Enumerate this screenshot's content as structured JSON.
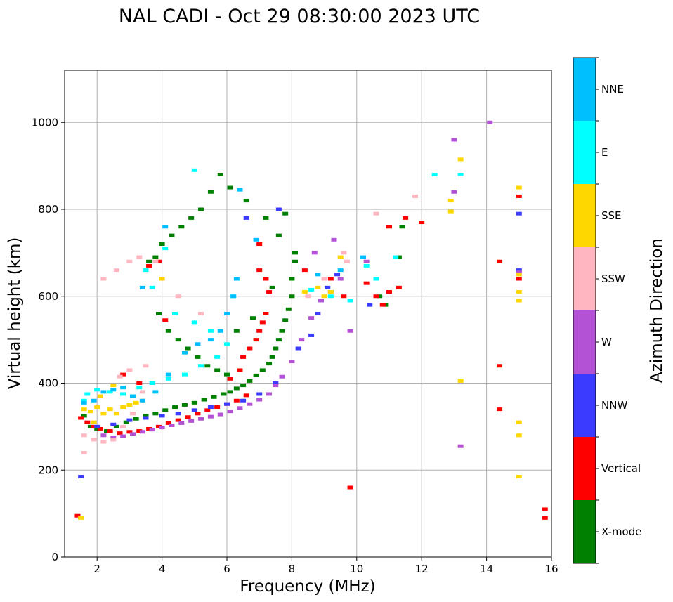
{
  "chart_data": {
    "type": "scatter",
    "title": "NAL CADI - Oct 29 08:30:00 2023 UTC",
    "xlabel": "Frequency (MHz)",
    "ylabel": "Virtual height (km)",
    "xlim": [
      1,
      16
    ],
    "ylim": [
      0,
      1120
    ],
    "xticks": [
      2,
      4,
      6,
      8,
      10,
      12,
      14,
      16
    ],
    "xtick_labels": [
      "2",
      "4",
      "6",
      "8",
      "10",
      "12",
      "14",
      "16"
    ],
    "yticks": [
      0,
      200,
      400,
      600,
      800,
      1000
    ],
    "ytick_labels": [
      "0",
      "200",
      "400",
      "600",
      "800",
      "1000"
    ],
    "grid": true,
    "colorbar": {
      "label": "Azimuth Direction",
      "categories": [
        {
          "name": "X-mode",
          "color": "#008000"
        },
        {
          "name": "Vertical",
          "color": "#ff0000"
        },
        {
          "name": "NNW",
          "color": "#3b3bff"
        },
        {
          "name": "W",
          "color": "#b452d6"
        },
        {
          "name": "SSW",
          "color": "#ffb6c1"
        },
        {
          "name": "SSE",
          "color": "#ffd700"
        },
        {
          "name": "E",
          "color": "#00ffff"
        },
        {
          "name": "NNE",
          "color": "#00bfff"
        }
      ]
    },
    "series": [
      {
        "name": "X-mode",
        "points": [
          [
            1.6,
            325
          ],
          [
            1.8,
            300
          ],
          [
            2.0,
            295
          ],
          [
            2.3,
            290
          ],
          [
            2.6,
            300
          ],
          [
            2.9,
            310
          ],
          [
            3.2,
            318
          ],
          [
            3.5,
            325
          ],
          [
            3.8,
            330
          ],
          [
            4.1,
            338
          ],
          [
            4.4,
            345
          ],
          [
            4.7,
            350
          ],
          [
            5.0,
            355
          ],
          [
            5.3,
            362
          ],
          [
            5.6,
            368
          ],
          [
            5.9,
            375
          ],
          [
            6.1,
            380
          ],
          [
            6.3,
            388
          ],
          [
            6.5,
            395
          ],
          [
            6.7,
            405
          ],
          [
            6.9,
            418
          ],
          [
            7.1,
            430
          ],
          [
            7.3,
            445
          ],
          [
            7.4,
            460
          ],
          [
            7.5,
            480
          ],
          [
            7.6,
            500
          ],
          [
            7.7,
            520
          ],
          [
            7.8,
            545
          ],
          [
            7.9,
            570
          ],
          [
            8.0,
            600
          ],
          [
            8.0,
            640
          ],
          [
            8.1,
            680
          ],
          [
            8.1,
            700
          ],
          [
            7.6,
            740
          ],
          [
            7.2,
            780
          ],
          [
            6.6,
            820
          ],
          [
            6.1,
            850
          ],
          [
            5.8,
            880
          ],
          [
            5.5,
            840
          ],
          [
            5.2,
            800
          ],
          [
            4.9,
            780
          ],
          [
            4.6,
            760
          ],
          [
            4.3,
            740
          ],
          [
            4.0,
            720
          ],
          [
            3.8,
            690
          ],
          [
            3.6,
            680
          ],
          [
            3.9,
            560
          ],
          [
            4.2,
            520
          ],
          [
            4.5,
            500
          ],
          [
            4.8,
            480
          ],
          [
            5.1,
            460
          ],
          [
            5.4,
            440
          ],
          [
            5.7,
            430
          ],
          [
            6.0,
            420
          ],
          [
            6.3,
            520
          ],
          [
            6.8,
            550
          ],
          [
            7.4,
            620
          ],
          [
            7.8,
            790
          ],
          [
            10.7,
            600
          ],
          [
            10.9,
            580
          ],
          [
            11.4,
            760
          ],
          [
            11.3,
            690
          ]
        ]
      },
      {
        "name": "Vertical",
        "points": [
          [
            1.5,
            320
          ],
          [
            1.7,
            310
          ],
          [
            1.9,
            300
          ],
          [
            2.1,
            295
          ],
          [
            2.4,
            290
          ],
          [
            2.7,
            285
          ],
          [
            3.0,
            288
          ],
          [
            3.3,
            290
          ],
          [
            3.6,
            295
          ],
          [
            3.9,
            300
          ],
          [
            4.2,
            308
          ],
          [
            4.5,
            315
          ],
          [
            4.8,
            322
          ],
          [
            5.1,
            330
          ],
          [
            5.4,
            338
          ],
          [
            5.7,
            345
          ],
          [
            6.0,
            352
          ],
          [
            6.3,
            360
          ],
          [
            6.6,
            372
          ],
          [
            6.4,
            430
          ],
          [
            6.5,
            460
          ],
          [
            6.7,
            480
          ],
          [
            6.9,
            500
          ],
          [
            7.0,
            520
          ],
          [
            7.1,
            540
          ],
          [
            7.2,
            560
          ],
          [
            7.3,
            610
          ],
          [
            7.2,
            640
          ],
          [
            7.0,
            660
          ],
          [
            7.0,
            720
          ],
          [
            3.6,
            670
          ],
          [
            3.9,
            680
          ],
          [
            4.1,
            545
          ],
          [
            2.8,
            420
          ],
          [
            3.3,
            400
          ],
          [
            8.4,
            660
          ],
          [
            9.2,
            640
          ],
          [
            9.6,
            600
          ],
          [
            10.3,
            630
          ],
          [
            10.6,
            600
          ],
          [
            10.8,
            580
          ],
          [
            11.0,
            610
          ],
          [
            11.3,
            620
          ],
          [
            11.0,
            760
          ],
          [
            11.5,
            780
          ],
          [
            12.0,
            770
          ],
          [
            14.4,
            680
          ],
          [
            14.4,
            440
          ],
          [
            14.4,
            340
          ],
          [
            15.0,
            830
          ],
          [
            15.0,
            640
          ],
          [
            15.8,
            110
          ],
          [
            15.8,
            90
          ],
          [
            9.8,
            160
          ],
          [
            1.4,
            95
          ],
          [
            6.1,
            410
          ]
        ]
      },
      {
        "name": "NNW",
        "points": [
          [
            2.0,
            300
          ],
          [
            2.5,
            305
          ],
          [
            3.0,
            315
          ],
          [
            3.5,
            320
          ],
          [
            4.0,
            325
          ],
          [
            4.5,
            330
          ],
          [
            5.0,
            338
          ],
          [
            5.5,
            345
          ],
          [
            6.0,
            352
          ],
          [
            6.5,
            360
          ],
          [
            7.0,
            375
          ],
          [
            7.5,
            400
          ],
          [
            8.2,
            480
          ],
          [
            8.6,
            510
          ],
          [
            8.8,
            560
          ],
          [
            9.1,
            620
          ],
          [
            9.4,
            650
          ],
          [
            15.0,
            790
          ],
          [
            15.0,
            660
          ],
          [
            10.4,
            580
          ],
          [
            6.6,
            780
          ],
          [
            1.5,
            185
          ],
          [
            7.6,
            800
          ]
        ]
      },
      {
        "name": "W",
        "points": [
          [
            2.2,
            280
          ],
          [
            2.5,
            275
          ],
          [
            2.8,
            278
          ],
          [
            3.1,
            283
          ],
          [
            3.4,
            288
          ],
          [
            3.7,
            293
          ],
          [
            4.0,
            298
          ],
          [
            4.3,
            303
          ],
          [
            4.6,
            308
          ],
          [
            4.9,
            313
          ],
          [
            5.2,
            318
          ],
          [
            5.5,
            323
          ],
          [
            5.8,
            328
          ],
          [
            6.1,
            335
          ],
          [
            6.4,
            343
          ],
          [
            6.7,
            352
          ],
          [
            7.0,
            362
          ],
          [
            7.3,
            375
          ],
          [
            7.5,
            395
          ],
          [
            7.7,
            415
          ],
          [
            8.0,
            450
          ],
          [
            8.3,
            500
          ],
          [
            8.6,
            550
          ],
          [
            8.9,
            590
          ],
          [
            9.2,
            610
          ],
          [
            9.5,
            640
          ],
          [
            8.7,
            700
          ],
          [
            9.3,
            730
          ],
          [
            10.3,
            680
          ],
          [
            13.0,
            960
          ],
          [
            13.0,
            840
          ],
          [
            13.2,
            255
          ],
          [
            14.1,
            1000
          ],
          [
            15.0,
            655
          ],
          [
            9.8,
            520
          ]
        ]
      },
      {
        "name": "SSW",
        "points": [
          [
            1.6,
            280
          ],
          [
            1.9,
            270
          ],
          [
            2.2,
            265
          ],
          [
            2.5,
            270
          ],
          [
            2.8,
            300
          ],
          [
            3.1,
            330
          ],
          [
            3.4,
            380
          ],
          [
            2.7,
            415
          ],
          [
            3.0,
            430
          ],
          [
            3.5,
            440
          ],
          [
            2.2,
            640
          ],
          [
            2.6,
            660
          ],
          [
            3.0,
            680
          ],
          [
            3.3,
            690
          ],
          [
            3.8,
            680
          ],
          [
            4.5,
            600
          ],
          [
            5.2,
            560
          ],
          [
            8.5,
            600
          ],
          [
            9.0,
            640
          ],
          [
            9.6,
            700
          ],
          [
            10.6,
            790
          ],
          [
            11.8,
            830
          ],
          [
            1.6,
            240
          ],
          [
            9.7,
            680
          ]
        ]
      },
      {
        "name": "SSE",
        "points": [
          [
            1.6,
            340
          ],
          [
            1.8,
            335
          ],
          [
            2.0,
            345
          ],
          [
            2.2,
            330
          ],
          [
            2.4,
            340
          ],
          [
            2.6,
            330
          ],
          [
            2.8,
            345
          ],
          [
            3.0,
            350
          ],
          [
            3.2,
            355
          ],
          [
            3.4,
            360
          ],
          [
            2.1,
            370
          ],
          [
            2.5,
            395
          ],
          [
            1.9,
            310
          ],
          [
            4.0,
            640
          ],
          [
            8.4,
            610
          ],
          [
            8.8,
            620
          ],
          [
            9.0,
            600
          ],
          [
            9.2,
            610
          ],
          [
            9.5,
            690
          ],
          [
            12.9,
            820
          ],
          [
            12.9,
            795
          ],
          [
            13.2,
            915
          ],
          [
            13.2,
            405
          ],
          [
            15.0,
            850
          ],
          [
            15.0,
            650
          ],
          [
            15.0,
            610
          ],
          [
            15.0,
            590
          ],
          [
            15.0,
            310
          ],
          [
            15.0,
            280
          ],
          [
            15.0,
            185
          ],
          [
            1.5,
            90
          ]
        ]
      },
      {
        "name": "E",
        "points": [
          [
            1.7,
            375
          ],
          [
            2.0,
            385
          ],
          [
            2.4,
            380
          ],
          [
            2.8,
            375
          ],
          [
            3.3,
            390
          ],
          [
            3.7,
            400
          ],
          [
            4.2,
            410
          ],
          [
            4.7,
            420
          ],
          [
            5.2,
            440
          ],
          [
            5.7,
            460
          ],
          [
            6.0,
            490
          ],
          [
            5.5,
            520
          ],
          [
            5.0,
            540
          ],
          [
            4.4,
            560
          ],
          [
            3.7,
            620
          ],
          [
            3.5,
            660
          ],
          [
            4.1,
            710
          ],
          [
            5.0,
            890
          ],
          [
            6.2,
            600
          ],
          [
            8.6,
            615
          ],
          [
            9.2,
            600
          ],
          [
            9.8,
            590
          ],
          [
            10.3,
            670
          ],
          [
            10.6,
            640
          ],
          [
            11.2,
            690
          ],
          [
            12.4,
            880
          ],
          [
            13.2,
            880
          ],
          [
            1.6,
            360
          ]
        ]
      },
      {
        "name": "NNE",
        "points": [
          [
            1.6,
            355
          ],
          [
            1.9,
            360
          ],
          [
            2.2,
            380
          ],
          [
            2.5,
            385
          ],
          [
            2.8,
            390
          ],
          [
            3.1,
            370
          ],
          [
            3.4,
            360
          ],
          [
            3.8,
            380
          ],
          [
            4.2,
            420
          ],
          [
            4.7,
            470
          ],
          [
            5.1,
            490
          ],
          [
            5.5,
            500
          ],
          [
            5.8,
            520
          ],
          [
            6.0,
            560
          ],
          [
            6.2,
            600
          ],
          [
            6.3,
            640
          ],
          [
            6.4,
            845
          ],
          [
            6.9,
            730
          ],
          [
            8.8,
            650
          ],
          [
            9.5,
            660
          ],
          [
            10.2,
            690
          ],
          [
            3.4,
            620
          ],
          [
            4.1,
            760
          ]
        ]
      }
    ]
  }
}
